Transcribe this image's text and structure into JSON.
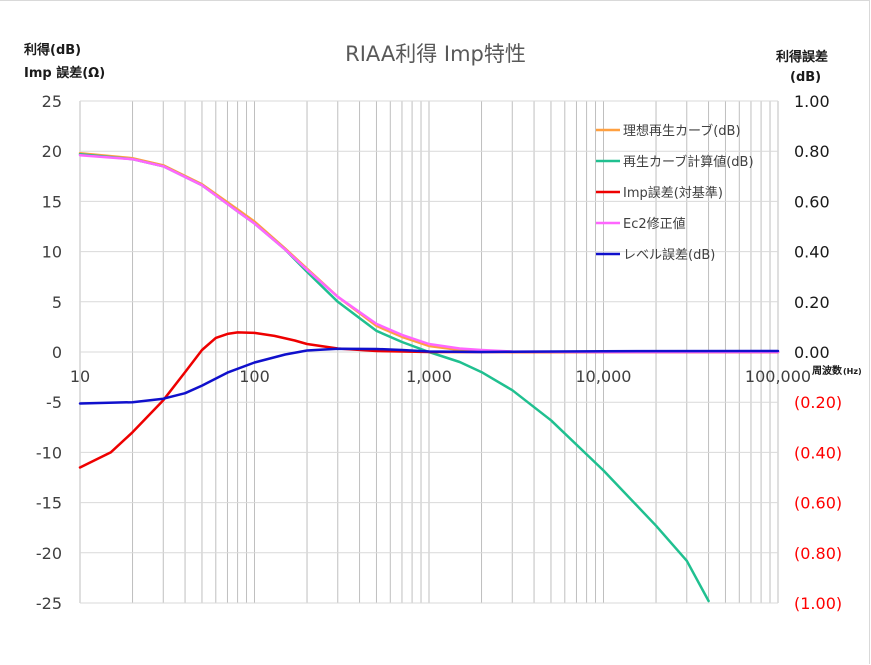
{
  "chart_data": {
    "type": "line",
    "title": "RIAA利得  Imp特性",
    "y_left_label_line1": "利得(dB)",
    "y_left_label_line2": "Imp 誤差(Ω)",
    "y_right_label_line1": "利得誤差",
    "y_right_label_line2": "(dB)",
    "x_label": "周波数",
    "x_unit": "(Hz)",
    "x_scale": "log",
    "xlim": [
      10,
      100000
    ],
    "x_ticks": [
      10,
      100,
      1000,
      10000,
      100000
    ],
    "x_tick_labels": [
      "10",
      "100",
      "1,000",
      "10,000",
      "100,000"
    ],
    "ylim_left": [
      -25,
      25
    ],
    "y_left_ticks": [
      25,
      20,
      15,
      10,
      5,
      0,
      -5,
      -10,
      -15,
      -20,
      -25
    ],
    "y_left_tick_labels": [
      "25",
      "20",
      "15",
      "10",
      "5",
      "0",
      "-5",
      "-10",
      "-15",
      "-20",
      "-25"
    ],
    "ylim_right": [
      -1.0,
      1.0
    ],
    "y_right_ticks": [
      1.0,
      0.8,
      0.6,
      0.4,
      0.2,
      0.0,
      -0.2,
      -0.4,
      -0.6,
      -0.8,
      -1.0
    ],
    "y_right_tick_labels": [
      "1.00",
      "0.80",
      "0.60",
      "0.40",
      "0.20",
      "0.00",
      "(0.20)",
      "(0.40)",
      "(0.60)",
      "(0.80)",
      "(1.00)"
    ],
    "negative_tick_color": "#ff0000",
    "grid": true,
    "legend_position": "top-right",
    "series": [
      {
        "name": "理想再生カーブ(dB)",
        "color": "#ffa040",
        "axis": "left",
        "points": [
          [
            10,
            19.8
          ],
          [
            20,
            19.3
          ],
          [
            30,
            18.6
          ],
          [
            50,
            16.7
          ],
          [
            80,
            14.2
          ],
          [
            100,
            13.0
          ],
          [
            150,
            10.3
          ],
          [
            200,
            8.3
          ],
          [
            300,
            5.5
          ],
          [
            500,
            2.6
          ],
          [
            700,
            1.5
          ],
          [
            1000,
            0.6
          ],
          [
            1500,
            0.2
          ],
          [
            2000,
            0.1
          ],
          [
            3000,
            0.0
          ],
          [
            10000,
            0.0
          ],
          [
            100000,
            0.0
          ]
        ]
      },
      {
        "name": "再生カーブ計算値(dB)",
        "color": "#20c090",
        "axis": "left",
        "points": [
          [
            10,
            19.7
          ],
          [
            20,
            19.2
          ],
          [
            30,
            18.5
          ],
          [
            50,
            16.6
          ],
          [
            80,
            14.0
          ],
          [
            100,
            12.8
          ],
          [
            150,
            10.2
          ],
          [
            200,
            8.0
          ],
          [
            300,
            5.0
          ],
          [
            500,
            2.1
          ],
          [
            700,
            1.0
          ],
          [
            1000,
            0.0
          ],
          [
            1500,
            -1.0
          ],
          [
            2000,
            -2.0
          ],
          [
            3000,
            -3.8
          ],
          [
            5000,
            -6.8
          ],
          [
            10000,
            -11.8
          ],
          [
            20000,
            -17.3
          ],
          [
            30000,
            -20.8
          ],
          [
            40000,
            -24.8
          ]
        ]
      },
      {
        "name": "Imp誤差(対基準)",
        "color": "#ee0000",
        "axis": "left",
        "points": [
          [
            10,
            -11.5
          ],
          [
            15,
            -10.0
          ],
          [
            20,
            -8.0
          ],
          [
            30,
            -4.8
          ],
          [
            40,
            -2.0
          ],
          [
            50,
            0.2
          ],
          [
            60,
            1.4
          ],
          [
            70,
            1.8
          ],
          [
            80,
            1.95
          ],
          [
            100,
            1.9
          ],
          [
            130,
            1.6
          ],
          [
            170,
            1.15
          ],
          [
            200,
            0.8
          ],
          [
            300,
            0.35
          ],
          [
            500,
            0.1
          ],
          [
            1000,
            0.0
          ],
          [
            10000,
            0.0
          ],
          [
            100000,
            0.0
          ]
        ]
      },
      {
        "name": "Ec2修正値",
        "color": "#ff66ff",
        "axis": "left",
        "points": [
          [
            10,
            19.6
          ],
          [
            20,
            19.2
          ],
          [
            30,
            18.5
          ],
          [
            50,
            16.6
          ],
          [
            80,
            14.0
          ],
          [
            100,
            12.8
          ],
          [
            150,
            10.2
          ],
          [
            200,
            8.2
          ],
          [
            300,
            5.5
          ],
          [
            500,
            2.8
          ],
          [
            700,
            1.7
          ],
          [
            1000,
            0.8
          ],
          [
            1500,
            0.35
          ],
          [
            2000,
            0.2
          ],
          [
            3000,
            0.05
          ],
          [
            10000,
            0.0
          ],
          [
            100000,
            0.0
          ]
        ]
      },
      {
        "name": "レベル誤差(dB)",
        "color": "#1010cc",
        "axis": "right",
        "points": [
          [
            10,
            -0.205
          ],
          [
            20,
            -0.2
          ],
          [
            30,
            -0.186
          ],
          [
            40,
            -0.164
          ],
          [
            50,
            -0.134
          ],
          [
            70,
            -0.082
          ],
          [
            100,
            -0.042
          ],
          [
            150,
            -0.01
          ],
          [
            200,
            0.006
          ],
          [
            300,
            0.013
          ],
          [
            500,
            0.012
          ],
          [
            700,
            0.008
          ],
          [
            1000,
            0.002
          ],
          [
            2000,
            0.0
          ],
          [
            3000,
            0.001
          ],
          [
            10000,
            0.003
          ],
          [
            100000,
            0.004
          ]
        ]
      }
    ]
  }
}
